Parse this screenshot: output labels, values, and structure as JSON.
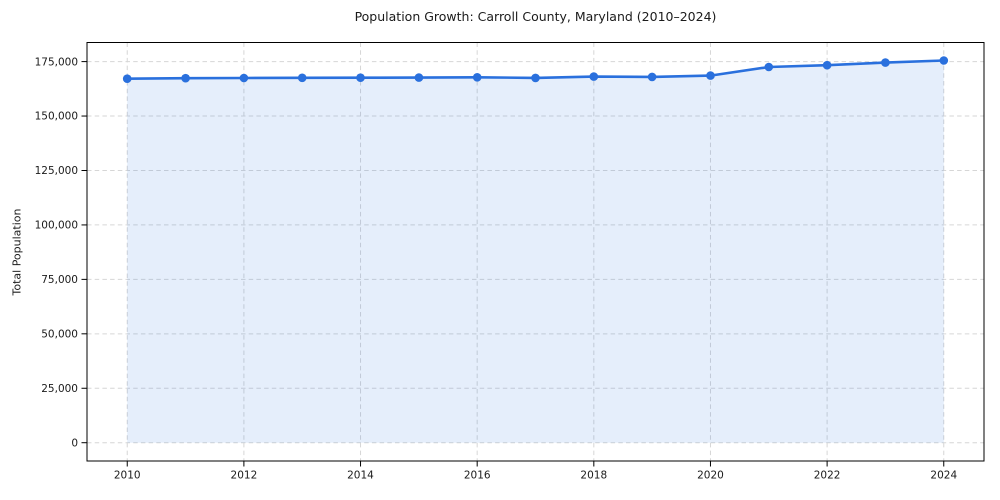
{
  "chart_data": {
    "type": "area",
    "title": "Population Growth: Carroll County, Maryland (2010–2024)",
    "xlabel": "",
    "ylabel": "Total Population",
    "x": [
      2010,
      2011,
      2012,
      2013,
      2014,
      2015,
      2016,
      2017,
      2018,
      2019,
      2020,
      2021,
      2022,
      2023,
      2024
    ],
    "series": [
      {
        "name": "Total Population",
        "values": [
          167134,
          167396,
          167461,
          167575,
          167627,
          167656,
          167781,
          167522,
          168119,
          167968,
          168561,
          172541,
          173367,
          174530,
          175525
        ]
      }
    ],
    "x_ticks": [
      2010,
      2012,
      2014,
      2016,
      2018,
      2020,
      2022,
      2024
    ],
    "x_tick_labels": [
      "2010",
      "2012",
      "2014",
      "2016",
      "2018",
      "2020",
      "2022",
      "2024"
    ],
    "y_ticks": [
      0,
      25000,
      50000,
      75000,
      100000,
      125000,
      150000,
      175000
    ],
    "y_tick_labels": [
      "0",
      "25,000",
      "50,000",
      "75,000",
      "100,000",
      "125,000",
      "150,000",
      "175,000"
    ],
    "xlim": [
      2009.31,
      2024.69
    ],
    "ylim": [
      -8400,
      183770
    ],
    "area_baseline": 0,
    "grid": true,
    "grid_style": "dashed",
    "legend": false,
    "marker": "circle",
    "marker_radius": 4.3,
    "line_width": 2.6,
    "fill_opacity": 0.12,
    "colors": {
      "line": "#2a70dd",
      "fill": "#2a70dd",
      "grid": "#d6d6d6",
      "frame": "#000000",
      "tick": "#000000",
      "text": "#1b1b1b",
      "background": "#ffffff"
    }
  }
}
